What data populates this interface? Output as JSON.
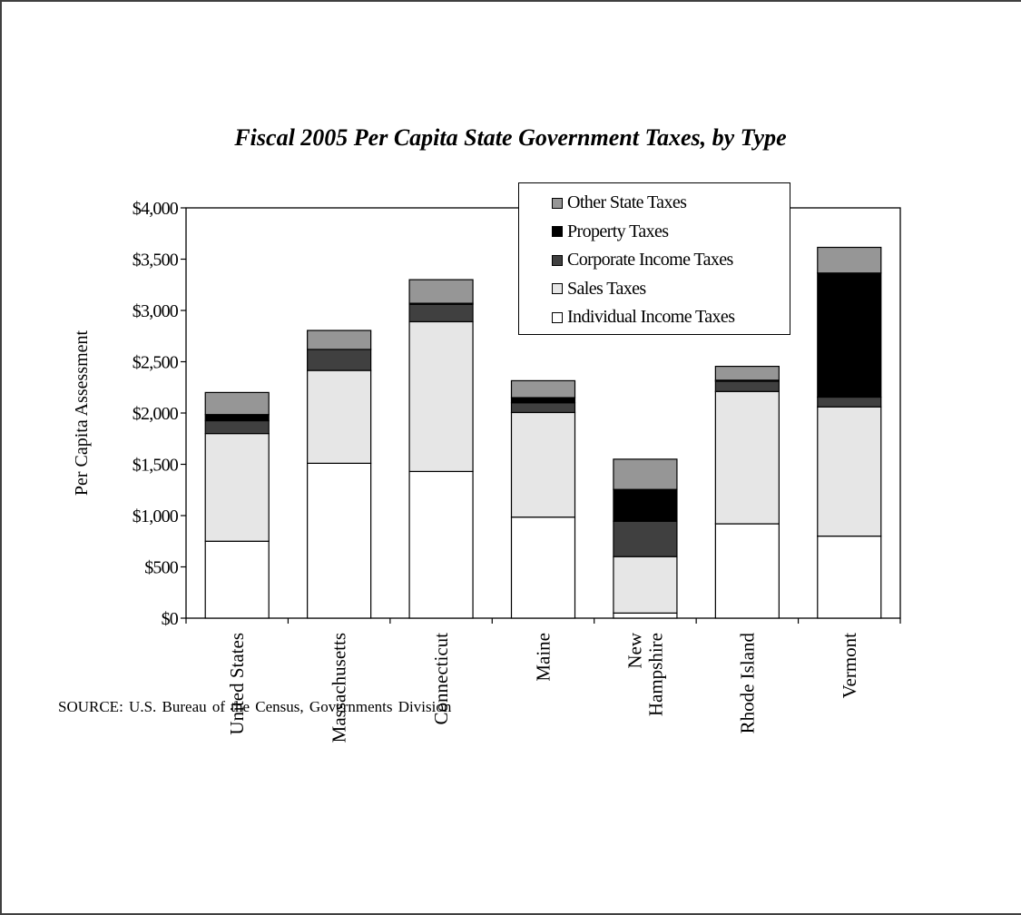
{
  "chart_data": {
    "type": "bar",
    "stacked": true,
    "title": "Fiscal 2005 Per Capita State Government Taxes, by Type",
    "ylabel": "Per Capita Assessment",
    "xlabel": "",
    "ylim": [
      0,
      4000
    ],
    "yticks": [
      "$0",
      "$500",
      "$1,000",
      "$1,500",
      "$2,000",
      "$2,500",
      "$3,000",
      "$3,500",
      "$4,000"
    ],
    "categories": [
      "United States",
      "Massachusetts",
      "Connecticut",
      "Maine",
      "New Hampshire",
      "Rhode Island",
      "Vermont"
    ],
    "category_lines": [
      [
        "United States"
      ],
      [
        "Massachusetts"
      ],
      [
        "Connecticut"
      ],
      [
        "Maine"
      ],
      [
        "New",
        "Hampshire"
      ],
      [
        "Rhode Island"
      ],
      [
        "Vermont"
      ]
    ],
    "series": [
      {
        "name": "Individual Income Taxes",
        "color": "#ffffff",
        "values": [
          750,
          1510,
          1430,
          985,
          50,
          920,
          800
        ]
      },
      {
        "name": "Sales Taxes",
        "color": "#e6e6e6",
        "values": [
          1050,
          905,
          1460,
          1020,
          550,
          1290,
          1260
        ]
      },
      {
        "name": "Corporate Income Taxes",
        "color": "#404040",
        "values": [
          125,
          205,
          170,
          95,
          345,
          100,
          95
        ]
      },
      {
        "name": "Property Taxes",
        "color": "#000000",
        "values": [
          60,
          0,
          10,
          50,
          310,
          10,
          1210
        ]
      },
      {
        "name": "Other State Taxes",
        "color": "#969696",
        "values": [
          215,
          185,
          230,
          165,
          295,
          135,
          250
        ]
      }
    ],
    "legend_position": "top-right",
    "legend_order": [
      "Other State Taxes",
      "Property Taxes",
      "Corporate Income Taxes",
      "Sales Taxes",
      "Individual Income Taxes"
    ],
    "grid": false
  },
  "source": "SOURCE:  U.S. Bureau of the Census, Governments Division"
}
